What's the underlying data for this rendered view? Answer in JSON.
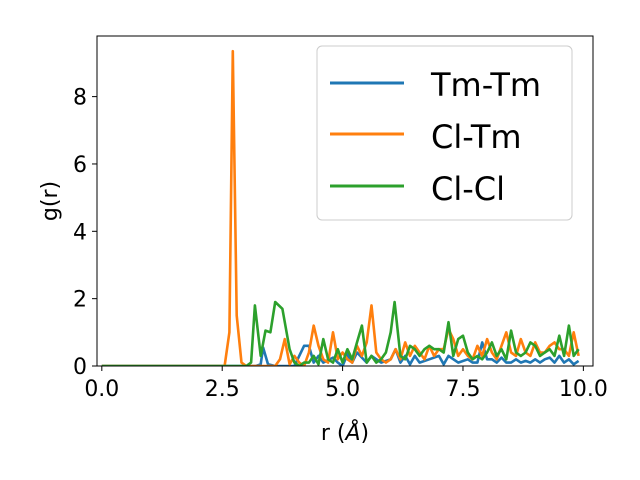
{
  "chart_data": {
    "type": "line",
    "xlabel": "r (",
    "xlabel_unit": "Å",
    "xlabel_close": ")",
    "ylabel": "g(r)",
    "xlim": [
      -0.1,
      10.2
    ],
    "ylim": [
      0,
      9.8
    ],
    "xticks": [
      0.0,
      2.5,
      5.0,
      7.5,
      10.0
    ],
    "xtick_labels": [
      "0.0",
      "2.5",
      "5.0",
      "7.5",
      "10.0"
    ],
    "yticks": [
      0,
      2,
      4,
      6,
      8
    ],
    "ytick_labels": [
      "0",
      "2",
      "4",
      "6",
      "8"
    ],
    "grid": false,
    "legend_position": "top-right",
    "series": [
      {
        "name": "Tm-Tm",
        "color": "#1f77b4",
        "x": [
          0.0,
          0.5,
          1.0,
          1.5,
          2.0,
          2.5,
          3.0,
          3.2,
          3.3,
          3.35,
          3.45,
          3.6,
          3.8,
          4.0,
          4.2,
          4.3,
          4.4,
          4.5,
          4.6,
          4.8,
          4.9,
          5.0,
          5.1,
          5.2,
          5.3,
          5.5,
          5.6,
          5.8,
          6.0,
          6.1,
          6.2,
          6.3,
          6.4,
          6.5,
          6.6,
          6.8,
          7.0,
          7.1,
          7.2,
          7.4,
          7.6,
          7.7,
          7.8,
          7.9,
          8.0,
          8.1,
          8.2,
          8.3,
          8.4,
          8.5,
          8.6,
          8.7,
          8.8,
          8.9,
          9.0,
          9.1,
          9.2,
          9.3,
          9.4,
          9.5,
          9.6,
          9.7,
          9.8,
          9.9
        ],
        "y": [
          0,
          0,
          0,
          0,
          0,
          0,
          0,
          0,
          0.05,
          0.55,
          0.05,
          0,
          0,
          0,
          0.6,
          0.6,
          0.1,
          0.3,
          0.1,
          0.25,
          0.1,
          0,
          0.35,
          0.1,
          0.4,
          0.1,
          0.3,
          0.1,
          0.2,
          0.5,
          0.1,
          0.3,
          0.05,
          0.3,
          0.1,
          0.2,
          0.3,
          0.05,
          0.3,
          0.1,
          0.2,
          0.1,
          0.1,
          0.7,
          0.2,
          0.2,
          0.1,
          0.25,
          0.1,
          0.1,
          0.2,
          0.1,
          0.15,
          0.1,
          0.2,
          0.1,
          0.2,
          0.25,
          0.1,
          0.3,
          0.1,
          0.2,
          0.05,
          0.15
        ]
      },
      {
        "name": "Cl-Tm",
        "color": "#ff7f0e",
        "x": [
          0.0,
          0.5,
          1.0,
          1.5,
          2.0,
          2.55,
          2.65,
          2.72,
          2.8,
          2.9,
          3.0,
          3.2,
          3.4,
          3.5,
          3.6,
          3.7,
          3.8,
          3.9,
          4.0,
          4.1,
          4.2,
          4.3,
          4.4,
          4.5,
          4.6,
          4.7,
          4.8,
          4.9,
          5.0,
          5.1,
          5.2,
          5.3,
          5.4,
          5.5,
          5.6,
          5.7,
          5.8,
          5.9,
          6.0,
          6.1,
          6.2,
          6.3,
          6.4,
          6.5,
          6.6,
          6.7,
          6.8,
          6.9,
          7.0,
          7.1,
          7.2,
          7.3,
          7.4,
          7.5,
          7.6,
          7.7,
          7.8,
          7.9,
          8.0,
          8.1,
          8.2,
          8.3,
          8.4,
          8.5,
          8.6,
          8.7,
          8.8,
          8.9,
          9.0,
          9.1,
          9.2,
          9.3,
          9.4,
          9.5,
          9.6,
          9.7,
          9.8,
          9.9
        ],
        "y": [
          0,
          0,
          0,
          0,
          0,
          0,
          1.0,
          9.35,
          1.5,
          0.1,
          0,
          0,
          0,
          0,
          0,
          0.2,
          0.8,
          0.05,
          0.3,
          0.1,
          0,
          0.4,
          1.2,
          0.6,
          0.2,
          0.1,
          1.0,
          0.2,
          0.4,
          0.2,
          0.1,
          0.6,
          0.3,
          0.7,
          1.8,
          0.4,
          0.2,
          0.1,
          0.2,
          0.5,
          0.2,
          0.7,
          0.3,
          0.6,
          0.4,
          0.2,
          0.6,
          0.3,
          0.5,
          0.5,
          1.1,
          0.8,
          0.3,
          0.5,
          0.3,
          0.2,
          0.6,
          0.3,
          0.8,
          0.4,
          0.2,
          0.6,
          1.0,
          0.4,
          0.3,
          0.8,
          0.4,
          0.3,
          0.7,
          0.4,
          0.4,
          0.6,
          0.7,
          0.5,
          0.5,
          0.3,
          1.0,
          0.3
        ]
      },
      {
        "name": "Cl-Cl",
        "color": "#2ca02c",
        "x": [
          0.0,
          0.5,
          1.0,
          1.5,
          2.0,
          2.5,
          3.0,
          3.1,
          3.18,
          3.3,
          3.4,
          3.5,
          3.6,
          3.75,
          3.9,
          4.0,
          4.1,
          4.2,
          4.3,
          4.4,
          4.5,
          4.6,
          4.7,
          4.8,
          4.9,
          5.0,
          5.1,
          5.2,
          5.3,
          5.4,
          5.5,
          5.6,
          5.7,
          5.8,
          5.9,
          6.0,
          6.08,
          6.2,
          6.3,
          6.4,
          6.5,
          6.6,
          6.7,
          6.8,
          6.9,
          7.0,
          7.1,
          7.2,
          7.3,
          7.4,
          7.5,
          7.6,
          7.7,
          7.8,
          7.9,
          8.0,
          8.1,
          8.2,
          8.3,
          8.4,
          8.5,
          8.6,
          8.7,
          8.8,
          8.9,
          9.0,
          9.1,
          9.2,
          9.3,
          9.4,
          9.5,
          9.6,
          9.7,
          9.8,
          9.9
        ],
        "y": [
          0,
          0,
          0,
          0,
          0,
          0,
          0,
          0.1,
          1.8,
          0.3,
          1.05,
          1.0,
          1.9,
          1.7,
          0.5,
          0.1,
          0,
          0.1,
          0.1,
          0.3,
          0.05,
          0.8,
          0.2,
          0.1,
          0.5,
          0.1,
          0.5,
          0.2,
          0.7,
          1.2,
          0.1,
          0.3,
          0.1,
          0.2,
          0.4,
          1.0,
          1.9,
          0.3,
          0.2,
          0.6,
          0.5,
          0.3,
          0.5,
          0.6,
          0.5,
          0.5,
          0.4,
          1.3,
          0.3,
          0.8,
          0.9,
          0.4,
          0.2,
          0.3,
          0.2,
          0.4,
          0.7,
          0.3,
          0.5,
          0.2,
          1.05,
          0.4,
          0.3,
          0.4,
          0.7,
          0.6,
          0.3,
          0.4,
          0.5,
          0.3,
          0.9,
          0.3,
          1.2,
          0.3,
          0.5
        ]
      }
    ]
  }
}
